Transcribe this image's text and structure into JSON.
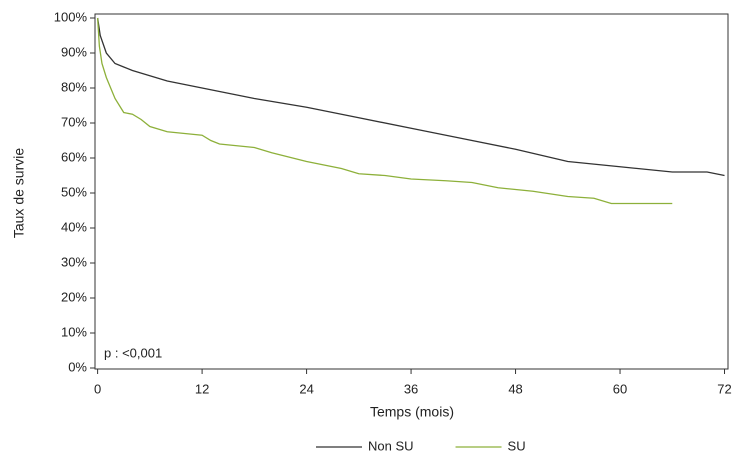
{
  "chart_data": {
    "type": "line",
    "xlabel": "Temps (mois)",
    "ylabel": "Taux de survie",
    "annotation": "p : <0,001",
    "xlim": [
      -0.3,
      72.4
    ],
    "xticks": [
      0,
      12,
      24,
      36,
      48,
      60,
      72
    ],
    "ylim": [
      0,
      100
    ],
    "yticks": [
      {
        "value": 0,
        "label": "0%"
      },
      {
        "value": 10,
        "label": "10%"
      },
      {
        "value": 20,
        "label": "20%"
      },
      {
        "value": 30,
        "label": "30%"
      },
      {
        "value": 40,
        "label": "40%"
      },
      {
        "value": 50,
        "label": "50%"
      },
      {
        "value": 60,
        "label": "60%"
      },
      {
        "value": 70,
        "label": "70%"
      },
      {
        "value": 80,
        "label": "80%"
      },
      {
        "value": 90,
        "label": "90%"
      },
      {
        "value": 100,
        "label": "100%"
      }
    ],
    "grid": false,
    "legend": "bottom",
    "series": [
      {
        "name": "Non SU",
        "color": "#333333",
        "x": [
          0,
          0.3,
          1,
          2,
          3,
          4,
          6,
          8,
          12,
          18,
          24,
          30,
          36,
          42,
          48,
          54,
          60,
          66,
          70,
          72
        ],
        "values": [
          100,
          95,
          90,
          87,
          86,
          85,
          83.5,
          82,
          80,
          77,
          74.5,
          71.5,
          68.5,
          65.5,
          62.5,
          59,
          57.5,
          56,
          56,
          55
        ]
      },
      {
        "name": "SU",
        "color": "#8db03a",
        "x": [
          0,
          0.2,
          0.5,
          1,
          2,
          3,
          4,
          5,
          6,
          8,
          10,
          12,
          13,
          14,
          18,
          20,
          24,
          28,
          30,
          33,
          36,
          40,
          43,
          46,
          48,
          50,
          54,
          57,
          59,
          66
        ],
        "values": [
          100,
          92,
          87,
          83,
          77,
          73,
          72.5,
          71,
          69,
          67.5,
          67,
          66.5,
          65,
          64,
          63,
          61.5,
          59,
          57,
          55.5,
          55,
          54,
          53.5,
          53,
          51.5,
          51,
          50.5,
          49,
          48.5,
          47,
          47
        ]
      }
    ]
  }
}
